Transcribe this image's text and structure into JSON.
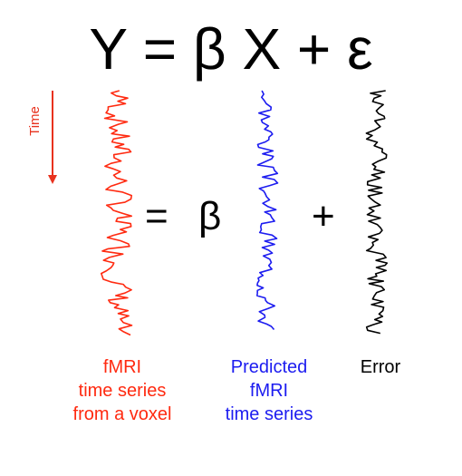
{
  "equation": "Y = β X + ε",
  "time_axis": {
    "label": "Time",
    "color": "#e8321e"
  },
  "inline_equation": {
    "equals": "=",
    "beta": "β",
    "plus": "+"
  },
  "series": [
    {
      "name": "fmri",
      "color": "#ff2a10",
      "caption": [
        "fMRI",
        "time series",
        "from a voxel"
      ],
      "seed": 7,
      "amplitude": 20
    },
    {
      "name": "predicted",
      "color": "#1c1cf0",
      "caption": [
        "Predicted",
        "fMRI",
        "time series"
      ],
      "seed": 3,
      "amplitude": 14
    },
    {
      "name": "error",
      "color": "#000000",
      "caption": [
        "Error"
      ],
      "seed": 11,
      "amplitude": 16
    }
  ]
}
